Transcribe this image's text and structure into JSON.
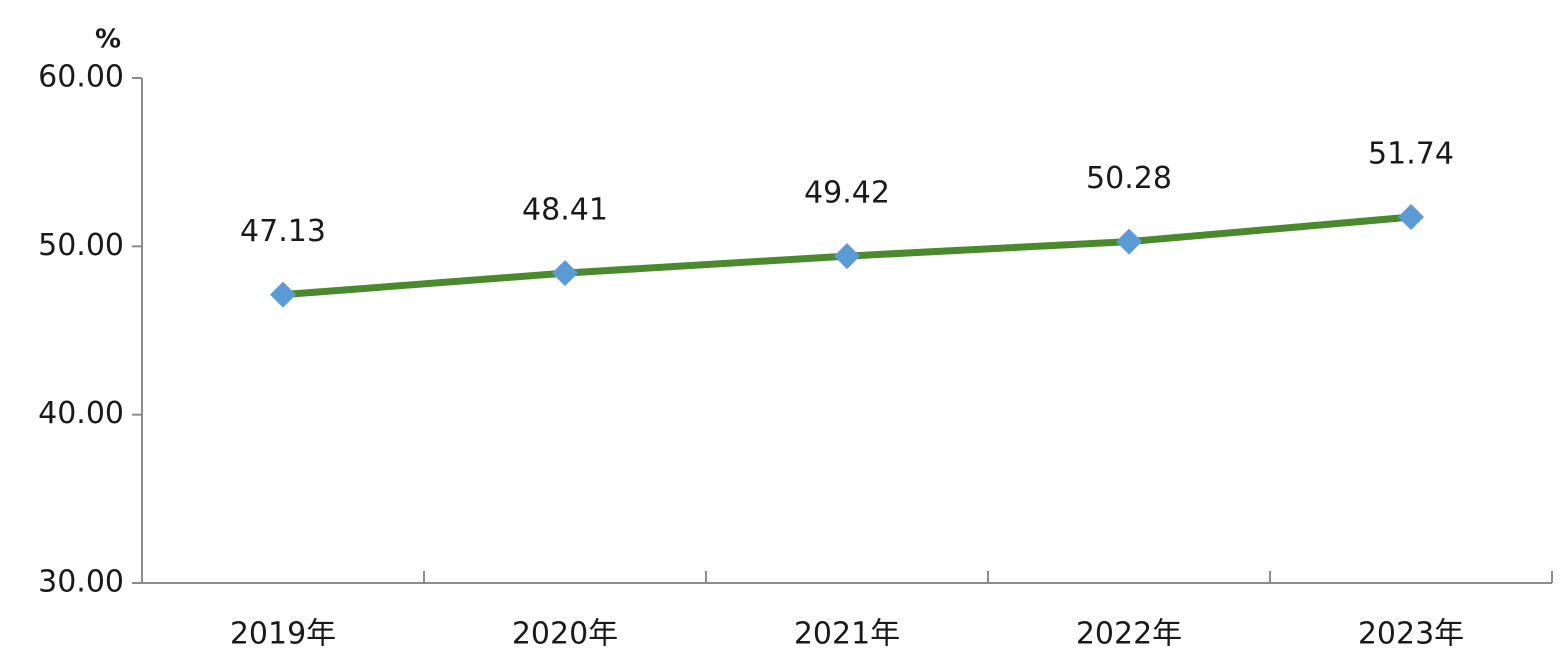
{
  "chart_data": {
    "type": "line",
    "y_label": "%",
    "categories": [
      "2019年",
      "2020年",
      "2021年",
      "2022年",
      "2023年"
    ],
    "values": [
      47.13,
      48.41,
      49.42,
      50.28,
      51.74
    ],
    "color": "#4a8a2c",
    "marker_color": "#5b9bd5",
    "marker": "diamond",
    "ylim": [
      30,
      60
    ],
    "yticks": [
      {
        "value": 30,
        "label": "30.00"
      },
      {
        "value": 40,
        "label": "40.00"
      },
      {
        "value": 50,
        "label": "50.00"
      },
      {
        "value": 60,
        "label": "60.00"
      }
    ],
    "grid": false
  }
}
